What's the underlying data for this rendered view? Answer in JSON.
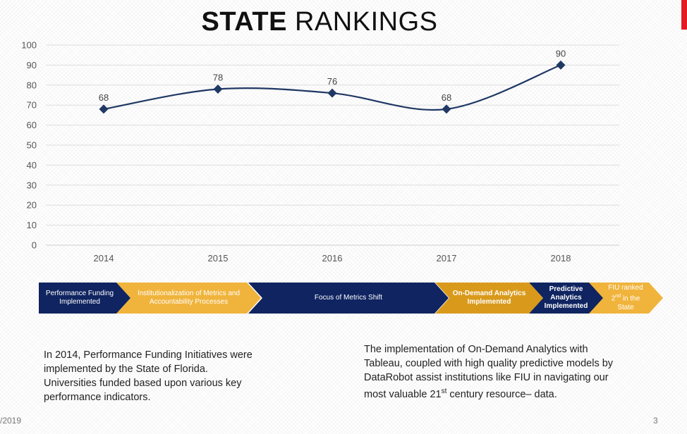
{
  "title": {
    "bold": "STATE",
    "rest": " RANKINGS"
  },
  "colors": {
    "navy": "#0f2460",
    "gold": "#f0b43c",
    "dark_gold": "#d99a1c",
    "line": "#1f3864",
    "accent": "#e31b23"
  },
  "chart_data": {
    "type": "line",
    "categories": [
      "2014",
      "2015",
      "2016",
      "2017",
      "2018"
    ],
    "series": [
      {
        "values": [
          68,
          78,
          76,
          68,
          90
        ]
      }
    ],
    "data_labels": [
      "68",
      "78",
      "76",
      "68",
      "90"
    ],
    "ylim": [
      0,
      100
    ],
    "yticks": [
      "0",
      "10",
      "20",
      "30",
      "40",
      "50",
      "60",
      "70",
      "80",
      "90",
      "100"
    ],
    "grid": true,
    "smooth": true,
    "marker": "diamond",
    "title": "",
    "xlabel": "",
    "ylabel": ""
  },
  "timeline": [
    {
      "label": "Performance Funding Implemented",
      "style": "navy"
    },
    {
      "label": "Institutionalization of Metrics and Accountability Processes",
      "style": "gold"
    },
    {
      "label": "Focus of Metrics Shift",
      "style": "navy"
    },
    {
      "label": "On-Demand Analytics Implemented",
      "style": "dark_gold"
    },
    {
      "label": "Predictive Analytics Implemented",
      "style": "navy"
    },
    {
      "label_pre": "FIU ranked",
      "label_num": "2",
      "label_sup": "nd",
      "label_post": " in the State",
      "style": "gold"
    }
  ],
  "text_left": "In 2014, Performance Funding Initiatives were implemented by the State of Florida. Universities funded based upon various key performance indicators.",
  "text_right": {
    "before_sup": "The implementation of On-Demand Analytics with Tableau, coupled with high quality predictive models by DataRobot assist institutions like FIU in navigating our most valuable 21",
    "sup": "st",
    "after_sup": " century resource– data."
  },
  "footer": {
    "date": "/2019",
    "page": "3"
  }
}
